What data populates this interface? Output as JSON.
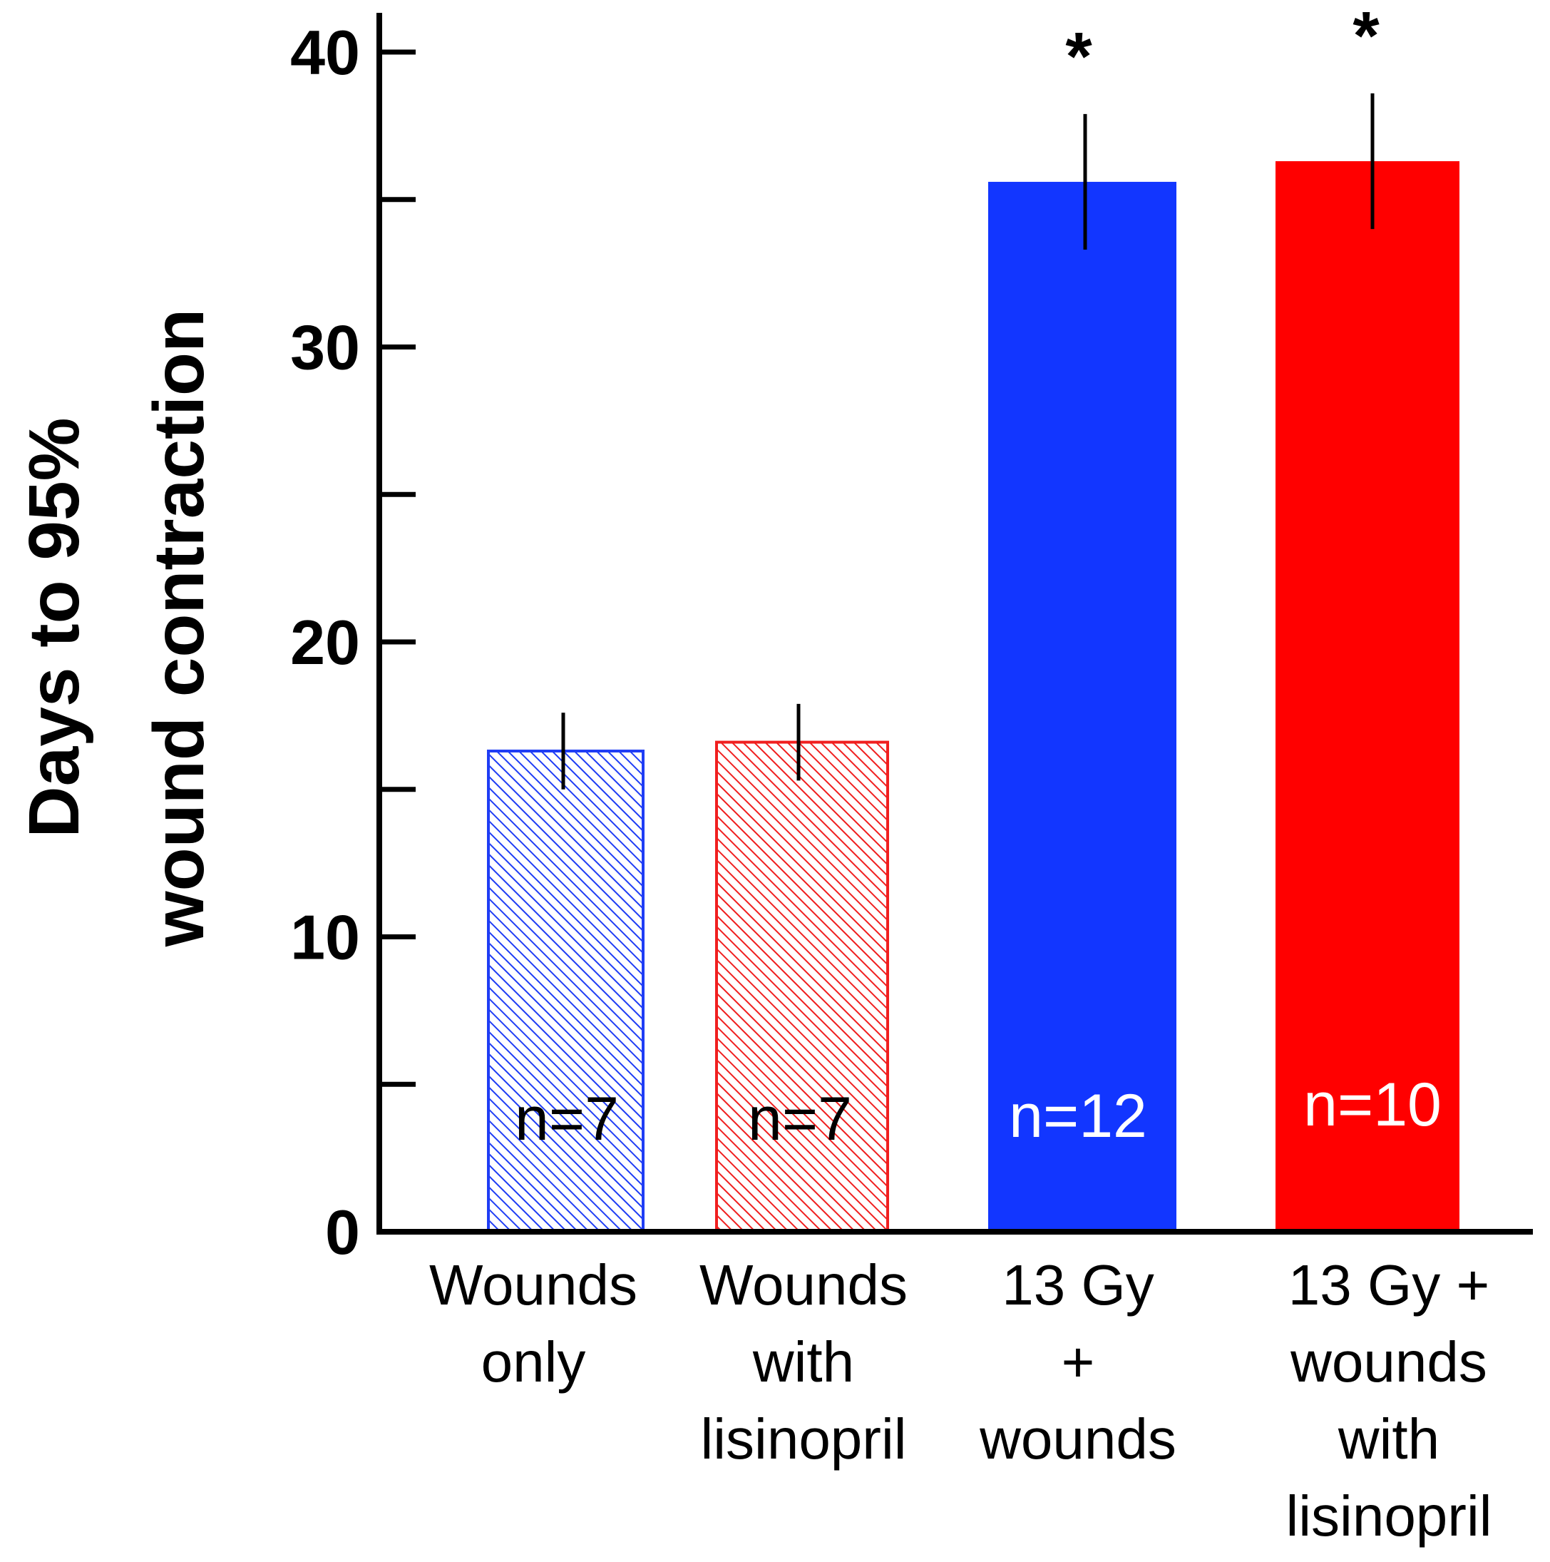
{
  "chart_data": {
    "type": "bar",
    "title": "",
    "xlabel": "",
    "ylabel": [
      "Days to 95%",
      "wound contraction"
    ],
    "ylim": [
      0,
      40
    ],
    "yticks": [
      0,
      10,
      20,
      30,
      40
    ],
    "minor_yticks": [
      5,
      15,
      25,
      35
    ],
    "grid": false,
    "categories": [
      [
        "Wounds",
        "only"
      ],
      [
        "Wounds",
        "with",
        "lisinopril"
      ],
      [
        "13 Gy",
        "+",
        "wounds"
      ],
      [
        "13 Gy +",
        "wounds",
        "with",
        "lisinopril"
      ]
    ],
    "values": [
      16.3,
      16.6,
      35.6,
      36.3
    ],
    "error": [
      1.3,
      1.3,
      2.3,
      2.3
    ],
    "n_labels": [
      "n=7",
      "n=7",
      "n=12",
      "n=10"
    ],
    "significance": [
      "",
      "",
      "*",
      "*"
    ],
    "fills": [
      "hatched",
      "hatched",
      "solid",
      "solid"
    ],
    "colors": [
      "#1f3df5",
      "#f01f1f",
      "#1236ff",
      "#ff0000"
    ]
  }
}
